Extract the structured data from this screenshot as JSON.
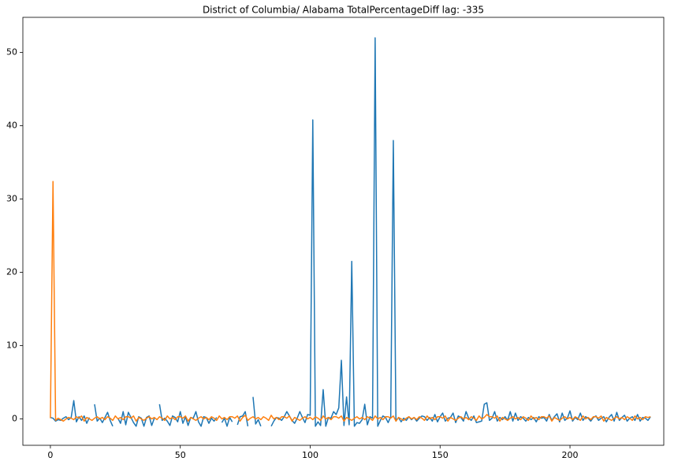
{
  "chart_data": {
    "type": "line",
    "title": "District of Columbia/ Alabama TotalPercentageDiff lag: -335",
    "x": [
      0,
      1,
      2,
      3,
      4,
      5,
      6,
      7,
      8,
      9,
      10,
      11,
      12,
      13,
      14,
      15,
      16,
      17,
      18,
      19,
      20,
      21,
      22,
      23,
      24,
      25,
      26,
      27,
      28,
      29,
      30,
      31,
      32,
      33,
      34,
      35,
      36,
      37,
      38,
      39,
      40,
      41,
      42,
      43,
      44,
      45,
      46,
      47,
      48,
      49,
      50,
      51,
      52,
      53,
      54,
      55,
      56,
      57,
      58,
      59,
      60,
      61,
      62,
      63,
      64,
      65,
      66,
      67,
      68,
      69,
      70,
      71,
      72,
      73,
      74,
      75,
      76,
      77,
      78,
      79,
      80,
      81,
      82,
      83,
      84,
      85,
      86,
      87,
      88,
      89,
      90,
      91,
      92,
      93,
      94,
      95,
      96,
      97,
      98,
      99,
      100,
      101,
      102,
      103,
      104,
      105,
      106,
      107,
      108,
      109,
      110,
      111,
      112,
      113,
      114,
      115,
      116,
      117,
      118,
      119,
      120,
      121,
      122,
      123,
      124,
      125,
      126,
      127,
      128,
      129,
      130,
      131,
      132,
      133,
      134,
      135,
      136,
      137,
      138,
      139,
      140,
      141,
      142,
      143,
      144,
      145,
      146,
      147,
      148,
      149,
      150,
      151,
      152,
      153,
      154,
      155,
      156,
      157,
      158,
      159,
      160,
      161,
      162,
      163,
      164,
      165,
      166,
      167,
      168,
      169,
      170,
      171,
      172,
      173,
      174,
      175,
      176,
      177,
      178,
      179,
      180,
      181,
      182,
      183,
      184,
      185,
      186,
      187,
      188,
      189,
      190,
      191,
      192,
      193,
      194,
      195,
      196,
      197,
      198,
      199,
      200,
      201,
      202,
      203,
      204,
      205,
      206,
      207,
      208,
      209,
      210,
      211,
      212,
      213,
      214,
      215,
      216,
      217,
      218,
      219,
      220,
      221,
      222,
      223,
      224,
      225,
      226,
      227,
      228,
      229,
      230,
      231
    ],
    "series": [
      {
        "color": "#1f77b4",
        "values": [
          0.2,
          0.1,
          -0.3,
          -0.1,
          -0.2,
          0.1,
          0.3,
          -0.1,
          0.2,
          2.5,
          -0.4,
          0.3,
          -0.2,
          0.4,
          -0.6,
          0.2,
          null,
          2.0,
          -0.3,
          0.1,
          -0.5,
          0.2,
          0.9,
          -0.2,
          -1.0,
          null,
          0.1,
          -0.6,
          1.0,
          -0.8,
          0.9,
          0.2,
          -0.5,
          -1.0,
          0.3,
          0.1,
          -1.0,
          0.2,
          0.4,
          -0.9,
          0.1,
          null,
          2.0,
          -0.2,
          0.1,
          -0.3,
          -0.9,
          0.4,
          0.2,
          -0.4,
          1.0,
          -0.6,
          0.3,
          -0.9,
          0.2,
          0.1,
          1.0,
          -0.4,
          -1.0,
          0.3,
          0.2,
          -0.6,
          0.1,
          -0.3,
          0.2,
          null,
          -0.5,
          0.1,
          -1.0,
          0.2,
          -0.4,
          null,
          -0.8,
          0.3,
          0.4,
          1.0,
          -1.0,
          null,
          3.0,
          -0.7,
          -0.1,
          -1.0,
          null,
          0.2,
          null,
          -1.0,
          -0.3,
          0.2,
          0.1,
          -0.2,
          0.3,
          1.0,
          0.4,
          -0.2,
          -0.6,
          0.1,
          1.0,
          0.2,
          -0.5,
          0.6,
          0.5,
          40.8,
          -1.0,
          -0.4,
          -0.9,
          4.0,
          -1.0,
          0.2,
          0.1,
          1.0,
          0.6,
          1.5,
          8.0,
          -0.9,
          3.0,
          -0.8,
          21.5,
          -1.0,
          -0.5,
          -0.6,
          -0.1,
          2.0,
          -0.8,
          0.3,
          0.1,
          52.0,
          -1.0,
          -0.2,
          0.4,
          0.2,
          -0.5,
          0.3,
          38.0,
          -0.3,
          0.2,
          -0.4,
          0.1,
          -0.2,
          0.3,
          -0.1,
          0.2,
          -0.3,
          0.1,
          0.4,
          0.3,
          -0.2,
          0.2,
          -0.3,
          0.6,
          -0.4,
          0.3,
          0.8,
          -0.3,
          0.1,
          0.2,
          0.8,
          -0.5,
          0.4,
          0.2,
          -0.3,
          1.0,
          0.1,
          -0.2,
          0.4,
          -0.5,
          -0.4,
          -0.3,
          2.0,
          2.2,
          -0.2,
          0.1,
          1.0,
          -0.3,
          0.2,
          -0.1,
          0.3,
          -0.2,
          1.0,
          -0.3,
          0.8,
          -0.2,
          0.3,
          0.1,
          -0.3,
          0.2,
          -0.1,
          0.2,
          -0.4,
          0.3,
          0.1,
          0.2,
          -0.3,
          0.6,
          -0.2,
          0.3,
          0.7,
          -0.4,
          0.8,
          -0.2,
          0.1,
          1.1,
          -0.3,
          0.2,
          -0.1,
          0.8,
          -0.2,
          0.3,
          0.1,
          -0.3,
          0.2,
          0.4,
          -0.2,
          0.1,
          0.3,
          -0.4,
          0.2,
          0.6,
          -0.3,
          0.9,
          -0.2,
          0.2,
          0.5,
          -0.3,
          0.1,
          0.3,
          -0.2,
          0.6,
          -0.3,
          0.2,
          0.1,
          -0.2,
          0.3
        ]
      },
      {
        "color": "#ff7f0e",
        "values": [
          0.1,
          32.4,
          -0.2,
          0.1,
          -0.1,
          -0.3,
          0.0,
          0.2,
          0.1,
          -0.1,
          0.3,
          0.1,
          0.4,
          -0.3,
          0.2,
          0.0,
          -0.2,
          0.1,
          0.3,
          0.0,
          0.2,
          -0.1,
          0.3,
          0.1,
          -0.2,
          0.4,
          0.0,
          0.2,
          -0.1,
          0.3,
          0.3,
          0.1,
          0.4,
          -0.3,
          0.2,
          0.0,
          -0.2,
          0.1,
          0.3,
          0.0,
          0.2,
          -0.1,
          0.3,
          0.1,
          -0.2,
          0.4,
          0.0,
          0.2,
          -0.1,
          0.3,
          0.3,
          0.1,
          0.4,
          -0.3,
          0.2,
          0.0,
          -0.2,
          0.1,
          0.3,
          0.0,
          0.2,
          -0.1,
          0.3,
          0.1,
          -0.2,
          0.4,
          0.0,
          0.2,
          -0.1,
          0.3,
          0.3,
          0.1,
          0.4,
          -0.3,
          0.2,
          0.5,
          -0.2,
          0.1,
          0.3,
          0.0,
          0.2,
          -0.1,
          0.3,
          0.1,
          -0.2,
          0.5,
          0.0,
          0.2,
          -0.1,
          0.3,
          0.3,
          0.1,
          0.4,
          -0.3,
          0.2,
          0.0,
          -0.2,
          0.1,
          0.3,
          0.0,
          0.2,
          -0.1,
          0.3,
          0.1,
          -0.2,
          0.4,
          0.0,
          0.2,
          -0.1,
          0.3,
          0.3,
          0.1,
          0.4,
          -0.3,
          0.2,
          0.0,
          -0.2,
          0.1,
          0.3,
          0.0,
          0.2,
          -0.1,
          0.3,
          0.1,
          -0.2,
          0.4,
          0.0,
          0.2,
          -0.1,
          0.3,
          0.3,
          0.1,
          0.4,
          -0.3,
          0.2,
          0.0,
          -0.2,
          0.1,
          0.3,
          0.0,
          0.2,
          -0.1,
          0.3,
          0.1,
          -0.2,
          0.4,
          0.0,
          0.2,
          -0.1,
          0.3,
          0.3,
          0.1,
          0.4,
          -0.3,
          0.2,
          0.0,
          -0.2,
          0.1,
          0.3,
          0.0,
          0.2,
          -0.1,
          0.3,
          0.1,
          -0.2,
          0.4,
          0.0,
          0.2,
          0.6,
          0.3,
          0.3,
          0.1,
          0.4,
          -0.3,
          0.2,
          0.0,
          -0.2,
          0.1,
          0.3,
          0.0,
          0.2,
          -0.1,
          0.3,
          0.1,
          -0.2,
          0.4,
          0.0,
          0.2,
          -0.1,
          0.3,
          0.3,
          0.1,
          0.4,
          -0.3,
          0.2,
          0.0,
          -0.2,
          0.1,
          0.3,
          0.0,
          0.2,
          -0.1,
          0.3,
          0.1,
          -0.2,
          0.4,
          0.0,
          0.2,
          -0.1,
          0.3,
          0.3,
          0.1,
          0.4,
          -0.3,
          0.2,
          0.0,
          -0.2,
          0.1,
          0.3,
          0.0,
          0.2,
          -0.1,
          0.3,
          0.1,
          -0.2,
          0.4,
          0.0,
          0.2,
          -0.1,
          0.3,
          0.2,
          0.3
        ]
      }
    ],
    "xlim": [
      -10.6,
      236.1
    ],
    "ylim": [
      -3.6,
      54.8
    ],
    "xticks": [
      0,
      50,
      100,
      150,
      200
    ],
    "yticks": [
      0,
      10,
      20,
      30,
      40,
      50
    ]
  }
}
